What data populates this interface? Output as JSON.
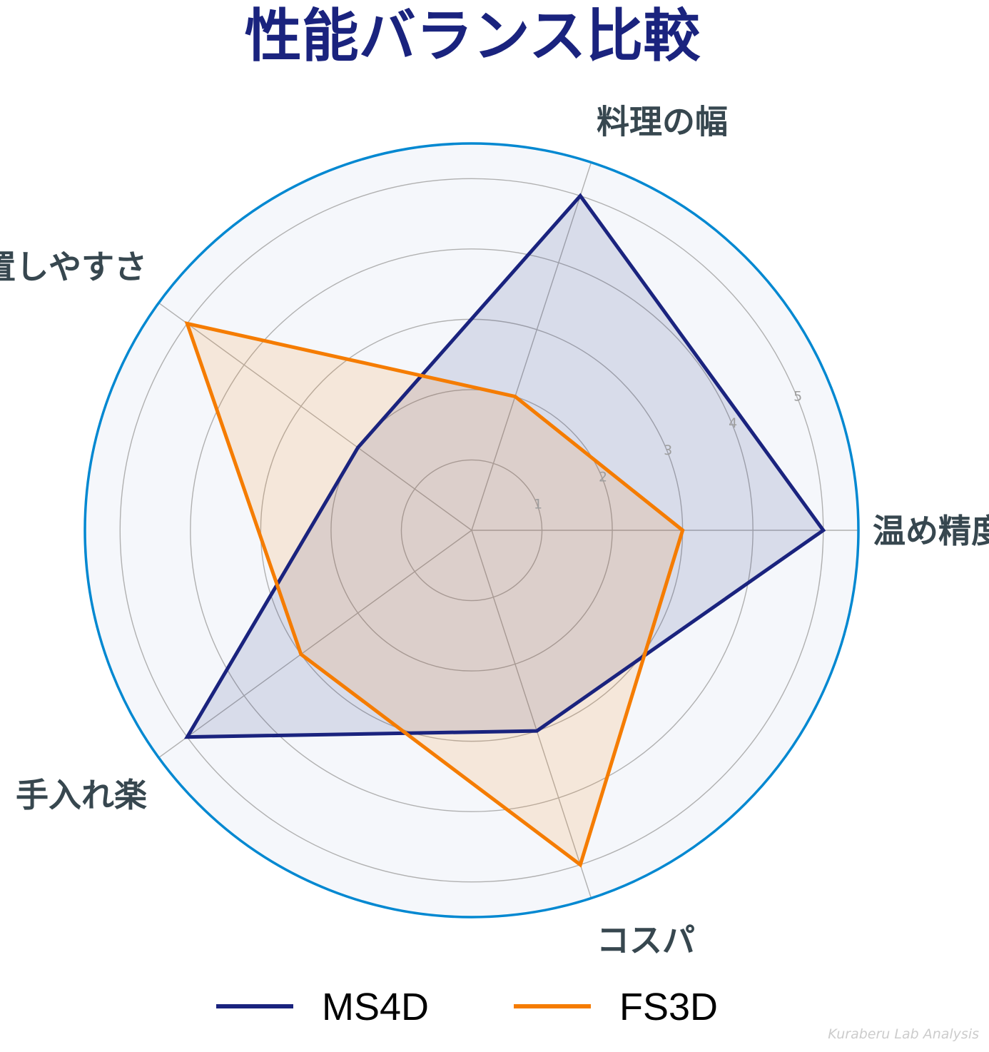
{
  "chart_data": {
    "type": "radar",
    "title": "性能バランス比較",
    "axes": [
      "温め精度",
      "料理の幅",
      "設置しやすさ",
      "手入れ楽",
      "コスパ"
    ],
    "rlim": [
      0,
      5.5
    ],
    "r_ticks": [
      1,
      2,
      3,
      4,
      5
    ],
    "grid": true,
    "legend_position": "bottom",
    "series": [
      {
        "name": "MS4D",
        "values": [
          5,
          5,
          2,
          5,
          3
        ]
      },
      {
        "name": "FS3D",
        "values": [
          3,
          2,
          5,
          3,
          5
        ]
      }
    ]
  },
  "colors": {
    "title": "#1a237e",
    "axis_label": "#37474f",
    "outer_ring": "#0288d1",
    "plot_background": "#f5f7fb",
    "grid": "#b0b0b0",
    "series": [
      "#1a237e",
      "#f57c00"
    ]
  },
  "watermark": "Kuraberu Lab Analysis"
}
